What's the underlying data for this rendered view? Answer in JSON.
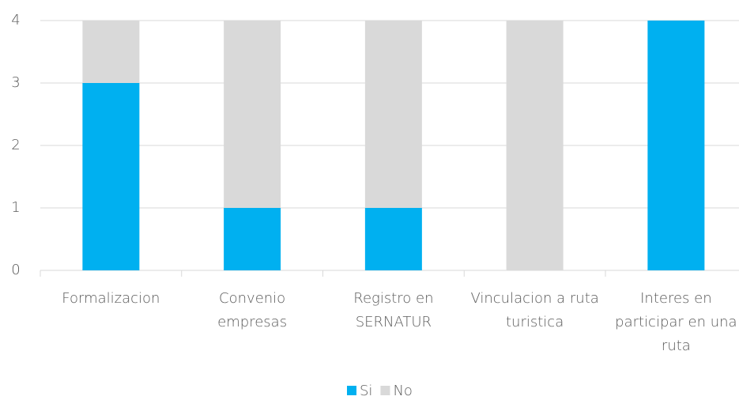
{
  "chart_data": {
    "type": "stacked_bar",
    "categories": [
      "Formalizacion",
      "Convenio empresas",
      "Registro en SERNATUR",
      "Vinculacion a ruta turistica",
      "Interes en participar en una ruta"
    ],
    "series": [
      {
        "name": "Si",
        "color": "#00b0f0",
        "values": [
          3,
          1,
          1,
          0,
          4
        ]
      },
      {
        "name": "No",
        "color": "#d9d9d9",
        "values": [
          1,
          3,
          3,
          4,
          0
        ]
      }
    ],
    "ylim": [
      0,
      4
    ],
    "yticks": [
      0,
      1,
      2,
      3,
      4
    ],
    "grid": true,
    "legend": "bottom"
  }
}
